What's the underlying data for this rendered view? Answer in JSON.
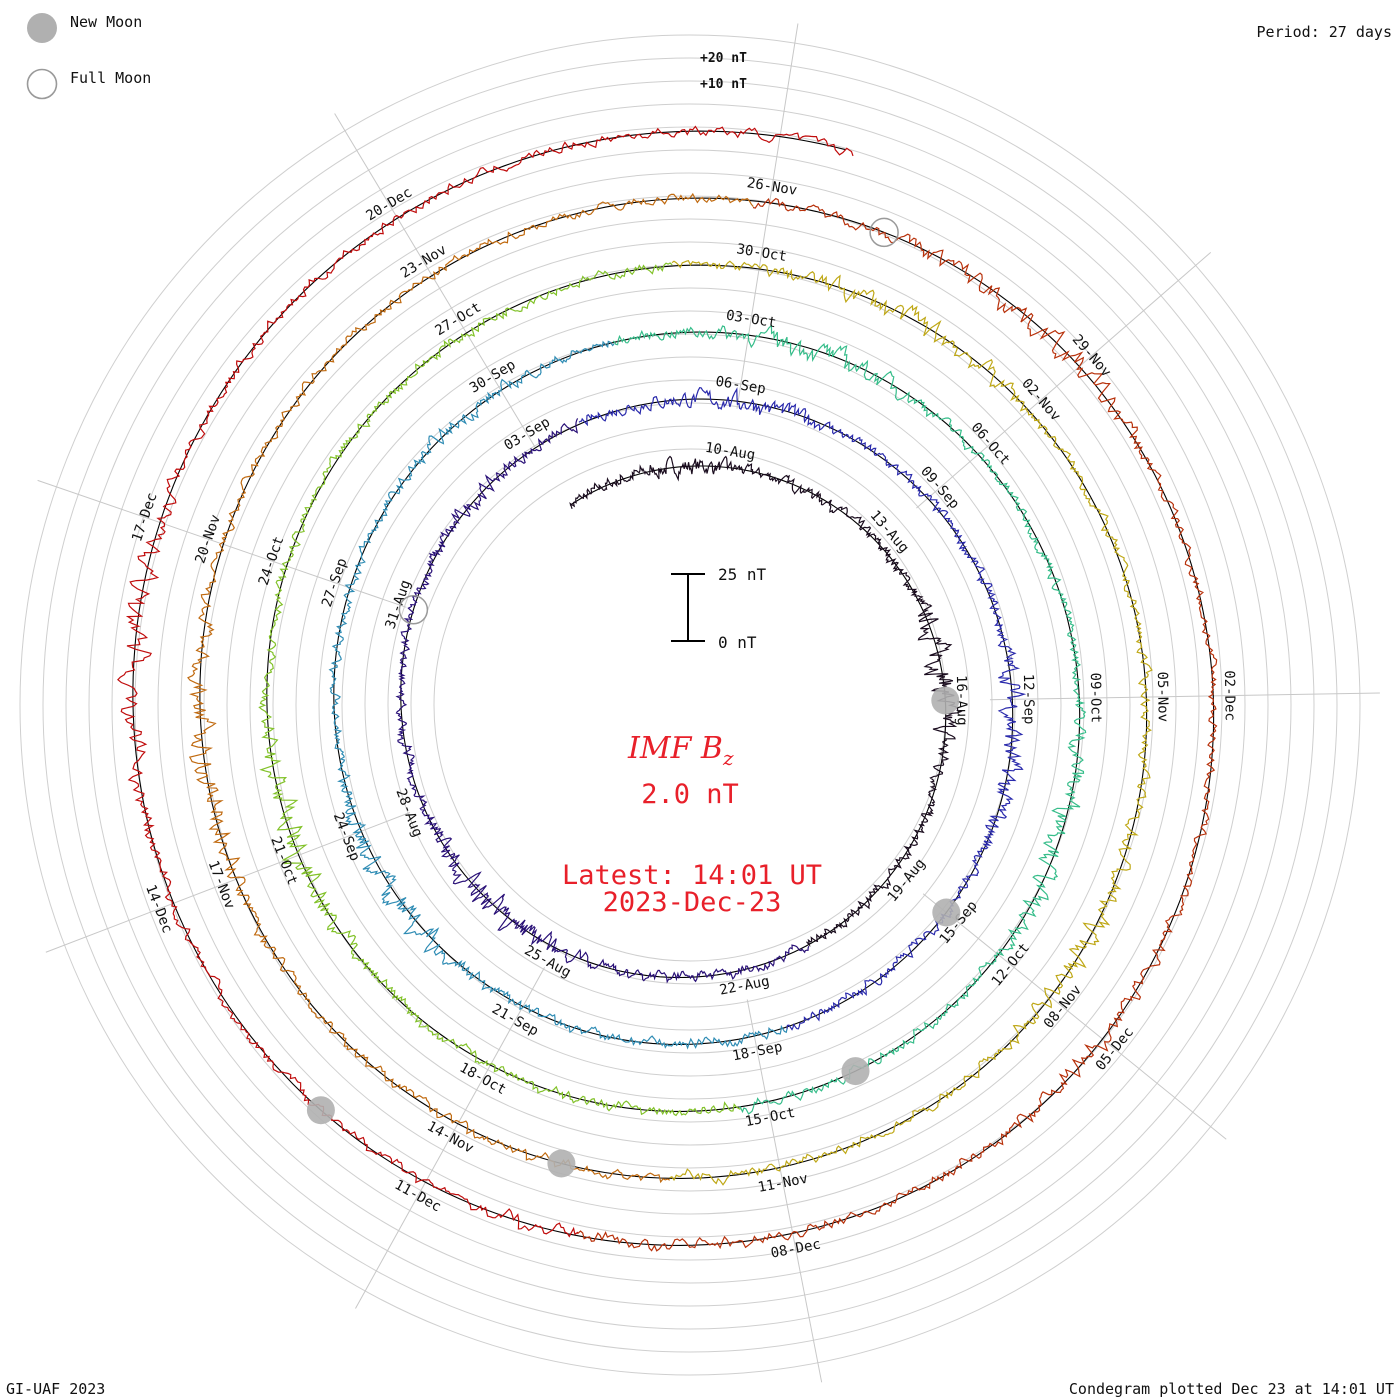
{
  "legend": {
    "new_moon": "New Moon",
    "full_moon": "Full Moon",
    "new_moon_color": "#b0b0b0",
    "full_moon_color": "#9a9a9a"
  },
  "period_label": "Period: 27 days",
  "reference_labels": [
    "+20 nT",
    "+10 nT"
  ],
  "scale_bar": {
    "top": "25 nT",
    "bottom": "0 nT"
  },
  "title": {
    "main": "IMF B",
    "subscript": "z"
  },
  "current_value": "2.0 nT",
  "latest": {
    "time": "Latest: 14:01 UT",
    "date": "2023-Dec-23"
  },
  "credit": "GI-UAF 2023",
  "plotted": "Condegram plotted Dec 23 at 14:01 UT",
  "chart_data": {
    "type": "line",
    "subtype": "condegram spiral",
    "variable": "IMF Bz",
    "units": "nT",
    "period_days": 27,
    "start_date": "2023-08-07",
    "end_date": "2023-12-23",
    "scale_nT": [
      0,
      25
    ],
    "series_colors": [
      "#1a0c1e",
      "#2a1178",
      "#2a2aac",
      "#2f8cb4",
      "#36bd8a",
      "#82c22a",
      "#bfa817",
      "#c06a10",
      "#b8320c",
      "#c00c0c"
    ],
    "date_labels": [
      "10-Aug",
      "13-Aug",
      "16-Aug",
      "19-Aug",
      "22-Aug",
      "25-Aug",
      "28-Aug",
      "31-Aug",
      "03-Sep",
      "06-Sep",
      "09-Sep",
      "12-Sep",
      "15-Sep",
      "18-Sep",
      "21-Sep",
      "24-Sep",
      "27-Sep",
      "30-Sep",
      "03-Oct",
      "06-Oct",
      "09-Oct",
      "12-Oct",
      "15-Oct",
      "18-Oct",
      "21-Oct",
      "24-Oct",
      "27-Oct",
      "30-Oct",
      "02-Nov",
      "05-Nov",
      "08-Nov",
      "11-Nov",
      "14-Nov",
      "17-Nov",
      "20-Nov",
      "23-Nov",
      "26-Nov",
      "29-Nov",
      "02-Dec",
      "05-Dec",
      "08-Dec",
      "11-Dec",
      "14-Dec",
      "17-Dec",
      "20-Dec"
    ],
    "new_moons": [
      "2023-08-16",
      "2023-09-15",
      "2023-10-14",
      "2023-11-13",
      "2023-12-12"
    ],
    "full_moons": [
      "2023-08-31",
      "2023-11-27"
    ]
  }
}
